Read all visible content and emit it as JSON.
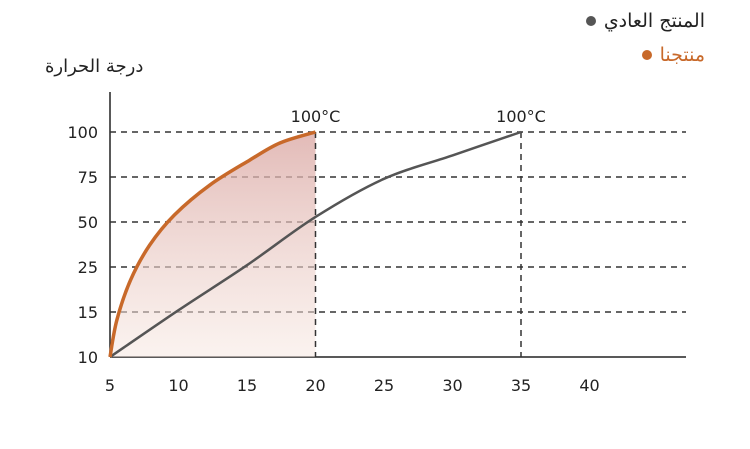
{
  "chart_data": {
    "type": "line",
    "ylabel": "درجة الحرارة",
    "xlabel": "",
    "x_ticks": [
      5,
      10,
      15,
      20,
      25,
      30,
      35,
      40
    ],
    "y_ticks": [
      10,
      15,
      25,
      50,
      75,
      100
    ],
    "grid": "horizontal dashed",
    "legend_position": "top-right",
    "series": [
      {
        "name": "المنتج العادي",
        "color": "#555555",
        "x": [
          5,
          10,
          15,
          20,
          25,
          30,
          35
        ],
        "y": [
          10,
          15.4,
          26,
          52.8,
          74,
          87,
          100
        ]
      },
      {
        "name": "منتجنا",
        "color": "#c8692a",
        "fill": "#e9c9c4",
        "x": [
          5,
          5.5,
          6.5,
          7.9,
          9.7,
          12.3,
          15.2,
          17.4,
          20
        ],
        "y": [
          10,
          14.1,
          22.1,
          37.2,
          53.9,
          70.6,
          84.4,
          93.9,
          100
        ]
      }
    ],
    "annotations": [
      {
        "text": "100°C",
        "x": 20,
        "y": 100
      },
      {
        "text": "100°C",
        "x": 35,
        "y": 100
      }
    ]
  }
}
